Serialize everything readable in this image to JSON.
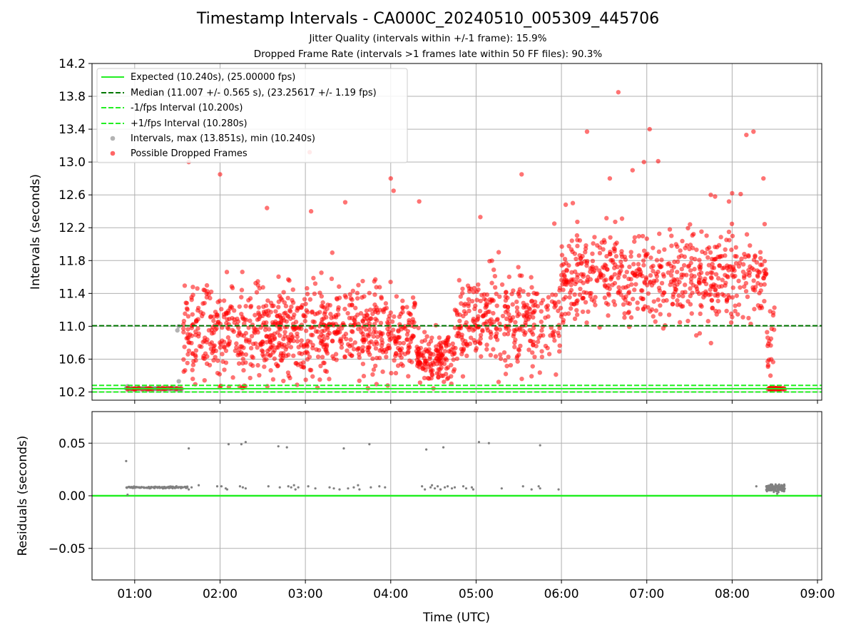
{
  "chart_data": [
    {
      "type": "scatter",
      "title": "Timestamp Intervals - CA000C_20240510_005309_445706",
      "subtitle_lines": [
        "Jitter Quality (intervals within +/-1 frame): 15.9%",
        "Dropped Frame Rate (intervals >1 frames late within 50 FF files): 90.3%"
      ],
      "xlabel": "",
      "ylabel": "Intervals (seconds)",
      "xlim": [
        "00:30",
        "09:03"
      ],
      "ylim": [
        10.1,
        14.2
      ],
      "y_ticks": [
        "10.2",
        "10.6",
        "11.0",
        "11.4",
        "11.8",
        "12.2",
        "12.6",
        "13.0",
        "13.4",
        "13.8",
        "14.2"
      ],
      "grid": true,
      "legend_position": "top-left",
      "reference_lines": [
        {
          "name": "Expected (10.240s), (25.00000 fps)",
          "y": 10.24,
          "style": "solid",
          "color": "#22ee22"
        },
        {
          "name": "Median (11.007 +/- 0.565 s), (23.25617 +/- 1.19 fps)",
          "y": 11.007,
          "style": "dashed",
          "color": "#007700"
        },
        {
          "name": "-1/fps Interval (10.200s)",
          "y": 10.2,
          "style": "dashed",
          "color": "#22ee22"
        },
        {
          "name": "+1/fps Interval (10.280s)",
          "y": 10.28,
          "style": "dashed",
          "color": "#22ee22"
        }
      ],
      "series": [
        {
          "name": "Intervals, max (13.851s), min (10.240s)",
          "color": "#808080",
          "summary": {
            "max": 13.851,
            "min": 10.24
          }
        },
        {
          "name": "Possible Dropped Frames",
          "color": "#ff0000",
          "segments": [
            {
              "x_start": "00:54",
              "x_end": "01:33",
              "y_mean": 10.24,
              "y_spread": 0.01,
              "n": 28
            },
            {
              "x_start": "01:34",
              "x_end": "02:55",
              "y_mean": 10.92,
              "y_spread": 0.42,
              "n": 430
            },
            {
              "x_start": "02:55",
              "x_end": "04:18",
              "y_mean": 10.95,
              "y_spread": 0.38,
              "n": 420
            },
            {
              "x_start": "04:18",
              "x_end": "04:45",
              "y_mean": 10.62,
              "y_spread": 0.2,
              "n": 150
            },
            {
              "x_start": "04:45",
              "x_end": "06:00",
              "y_mean": 11.05,
              "y_spread": 0.4,
              "n": 330
            },
            {
              "x_start": "06:00",
              "x_end": "08:24",
              "y_mean": 11.6,
              "y_spread": 0.38,
              "n": 610
            },
            {
              "x_start": "08:24",
              "x_end": "08:30",
              "y_mean": 10.9,
              "y_spread": 0.3,
              "n": 20
            },
            {
              "x_start": "08:25",
              "x_end": "08:37",
              "y_mean": 10.24,
              "y_spread": 0.01,
              "n": 45
            }
          ],
          "outliers": [
            {
              "x": "01:38",
              "y": 13.0
            },
            {
              "x": "02:00",
              "y": 12.85
            },
            {
              "x": "03:03",
              "y": 13.12
            },
            {
              "x": "03:04",
              "y": 12.4
            },
            {
              "x": "02:33",
              "y": 12.44
            },
            {
              "x": "03:28",
              "y": 12.51
            },
            {
              "x": "04:00",
              "y": 12.8
            },
            {
              "x": "04:02",
              "y": 12.65
            },
            {
              "x": "04:20",
              "y": 12.52
            },
            {
              "x": "05:03",
              "y": 12.33
            },
            {
              "x": "05:32",
              "y": 12.85
            },
            {
              "x": "05:55",
              "y": 12.25
            },
            {
              "x": "06:03",
              "y": 12.48
            },
            {
              "x": "06:08",
              "y": 12.5
            },
            {
              "x": "06:18",
              "y": 13.37
            },
            {
              "x": "06:34",
              "y": 12.8
            },
            {
              "x": "06:40",
              "y": 13.85
            },
            {
              "x": "06:50",
              "y": 12.9
            },
            {
              "x": "06:58",
              "y": 13.0
            },
            {
              "x": "07:02",
              "y": 13.4
            },
            {
              "x": "07:08",
              "y": 13.01
            },
            {
              "x": "07:45",
              "y": 12.6
            },
            {
              "x": "07:48",
              "y": 12.58
            },
            {
              "x": "08:00",
              "y": 12.62
            },
            {
              "x": "08:06",
              "y": 12.61
            },
            {
              "x": "08:10",
              "y": 13.33
            },
            {
              "x": "08:15",
              "y": 13.37
            },
            {
              "x": "08:22",
              "y": 12.8
            }
          ]
        }
      ]
    },
    {
      "type": "scatter",
      "title": "",
      "xlabel": "Time (UTC)",
      "ylabel": "Residuals (seconds)",
      "xlim": [
        "00:30",
        "09:03"
      ],
      "ylim": [
        -0.08,
        0.08
      ],
      "x_ticks": [
        "01:00",
        "02:00",
        "03:00",
        "04:00",
        "05:00",
        "06:00",
        "07:00",
        "08:00",
        "09:00"
      ],
      "y_ticks": [
        "−0.05",
        "0.00",
        "0.05"
      ],
      "grid": true,
      "reference_lines": [
        {
          "y": 0.0,
          "style": "solid",
          "color": "#22ee22"
        }
      ],
      "series": [
        {
          "color": "#808080",
          "segments": [
            {
              "x_start": "00:54",
              "x_end": "01:37",
              "y_mean": 0.008,
              "y_spread": 0.0006,
              "n": 130
            },
            {
              "x_start": "08:24",
              "x_end": "08:37",
              "y_mean": 0.0075,
              "y_spread": 0.0025,
              "n": 140
            }
          ],
          "points": [
            {
              "x": "00:54",
              "y": 0.033
            },
            {
              "x": "00:55",
              "y": 0.001
            },
            {
              "x": "01:38",
              "y": 0.045
            },
            {
              "x": "01:38",
              "y": 0.006
            },
            {
              "x": "01:40",
              "y": 0.008
            },
            {
              "x": "01:45",
              "y": 0.01
            },
            {
              "x": "01:58",
              "y": 0.009
            },
            {
              "x": "02:01",
              "y": 0.009
            },
            {
              "x": "02:04",
              "y": 0.007
            },
            {
              "x": "02:05",
              "y": 0.006
            },
            {
              "x": "02:06",
              "y": 0.049
            },
            {
              "x": "02:14",
              "y": 0.009
            },
            {
              "x": "02:15",
              "y": 0.049
            },
            {
              "x": "02:16",
              "y": 0.008
            },
            {
              "x": "02:18",
              "y": 0.051
            },
            {
              "x": "02:18",
              "y": 0.007
            },
            {
              "x": "02:34",
              "y": 0.009
            },
            {
              "x": "02:41",
              "y": 0.047
            },
            {
              "x": "02:42",
              "y": 0.008
            },
            {
              "x": "02:47",
              "y": 0.046
            },
            {
              "x": "02:48",
              "y": 0.009
            },
            {
              "x": "02:50",
              "y": 0.008
            },
            {
              "x": "02:52",
              "y": 0.01
            },
            {
              "x": "02:53",
              "y": 0.006
            },
            {
              "x": "02:55",
              "y": 0.008
            },
            {
              "x": "03:02",
              "y": 0.009
            },
            {
              "x": "03:07",
              "y": 0.007
            },
            {
              "x": "03:17",
              "y": 0.008
            },
            {
              "x": "03:20",
              "y": 0.007
            },
            {
              "x": "03:24",
              "y": 0.006
            },
            {
              "x": "03:27",
              "y": 0.045
            },
            {
              "x": "03:30",
              "y": 0.007
            },
            {
              "x": "03:34",
              "y": 0.008
            },
            {
              "x": "03:37",
              "y": 0.01
            },
            {
              "x": "03:38",
              "y": 0.006
            },
            {
              "x": "03:45",
              "y": 0.049
            },
            {
              "x": "03:46",
              "y": 0.008
            },
            {
              "x": "03:52",
              "y": 0.009
            },
            {
              "x": "03:56",
              "y": 0.008
            },
            {
              "x": "04:22",
              "y": 0.009
            },
            {
              "x": "04:24",
              "y": 0.006
            },
            {
              "x": "04:25",
              "y": 0.044
            },
            {
              "x": "04:28",
              "y": 0.008
            },
            {
              "x": "04:29",
              "y": 0.01
            },
            {
              "x": "04:31",
              "y": 0.007
            },
            {
              "x": "04:33",
              "y": 0.009
            },
            {
              "x": "04:35",
              "y": 0.006
            },
            {
              "x": "04:37",
              "y": 0.046
            },
            {
              "x": "04:38",
              "y": 0.008
            },
            {
              "x": "04:40",
              "y": 0.009
            },
            {
              "x": "04:43",
              "y": 0.007
            },
            {
              "x": "04:45",
              "y": 0.008
            },
            {
              "x": "04:51",
              "y": 0.009
            },
            {
              "x": "04:53",
              "y": 0.007
            },
            {
              "x": "04:57",
              "y": 0.008
            },
            {
              "x": "04:58",
              "y": 0.006
            },
            {
              "x": "05:02",
              "y": 0.051
            },
            {
              "x": "05:09",
              "y": 0.05
            },
            {
              "x": "05:18",
              "y": 0.007
            },
            {
              "x": "05:33",
              "y": 0.009
            },
            {
              "x": "05:39",
              "y": 0.006
            },
            {
              "x": "05:44",
              "y": 0.009
            },
            {
              "x": "05:45",
              "y": 0.048
            },
            {
              "x": "05:45",
              "y": 0.007
            },
            {
              "x": "05:58",
              "y": 0.006
            },
            {
              "x": "08:17",
              "y": 0.009
            }
          ]
        }
      ]
    }
  ]
}
